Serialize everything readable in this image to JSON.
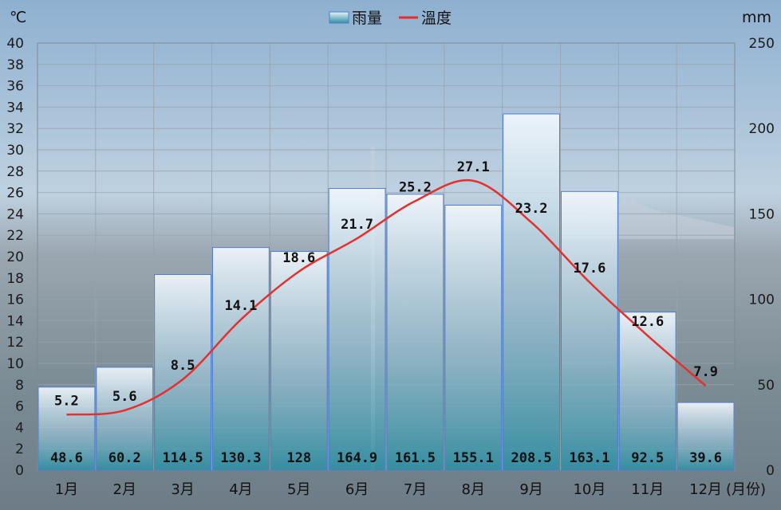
{
  "chart_data": {
    "type": "bar",
    "categories": [
      "1月",
      "2月",
      "3月",
      "4月",
      "5月",
      "6月",
      "7月",
      "8月",
      "9月",
      "10月",
      "11月",
      "12月"
    ],
    "series": [
      {
        "name": "雨量",
        "type": "bar",
        "axis": "right",
        "values": [
          48.6,
          60.2,
          114.5,
          130.3,
          128,
          164.9,
          161.5,
          155.1,
          208.5,
          163.1,
          92.5,
          39.6
        ],
        "labels": [
          "48.6",
          "60.2",
          "114.5",
          "130.3",
          "128",
          "164.9",
          "161.5",
          "155.1",
          "208.5",
          "163.1",
          "92.5",
          "39.6"
        ]
      },
      {
        "name": "溫度",
        "type": "line",
        "axis": "left",
        "values": [
          5.2,
          5.6,
          8.5,
          14.1,
          18.6,
          21.7,
          25.2,
          27.1,
          23.2,
          17.6,
          12.6,
          7.9
        ],
        "labels": [
          "5.2",
          "5.6",
          "8.5",
          "14.1",
          "18.6",
          "21.7",
          "25.2",
          "27.1",
          "23.2",
          "17.6",
          "12.6",
          "7.9"
        ]
      }
    ],
    "y_left": {
      "unit": "℃",
      "range": [
        0,
        40
      ],
      "ticks": [
        "0",
        "2",
        "4",
        "6",
        "8",
        "10",
        "12",
        "14",
        "16",
        "18",
        "20",
        "22",
        "24",
        "26",
        "28",
        "30",
        "32",
        "34",
        "36",
        "38",
        "40"
      ]
    },
    "y_right": {
      "unit": "mm",
      "range": [
        0,
        250
      ],
      "ticks": [
        "0",
        "50",
        "100",
        "150",
        "200",
        "250"
      ]
    },
    "x_unit": "(月份)",
    "legend": {
      "position": "top-center",
      "items": [
        "雨量",
        "溫度"
      ]
    },
    "grid": true,
    "colors": {
      "bar_fill_top": "#f2f7fc",
      "bar_fill_bottom": "#2f8fa3",
      "bar_border": "#4f7fcf",
      "temp_line": "#e3312f",
      "grid": "#9aa3ad"
    }
  }
}
